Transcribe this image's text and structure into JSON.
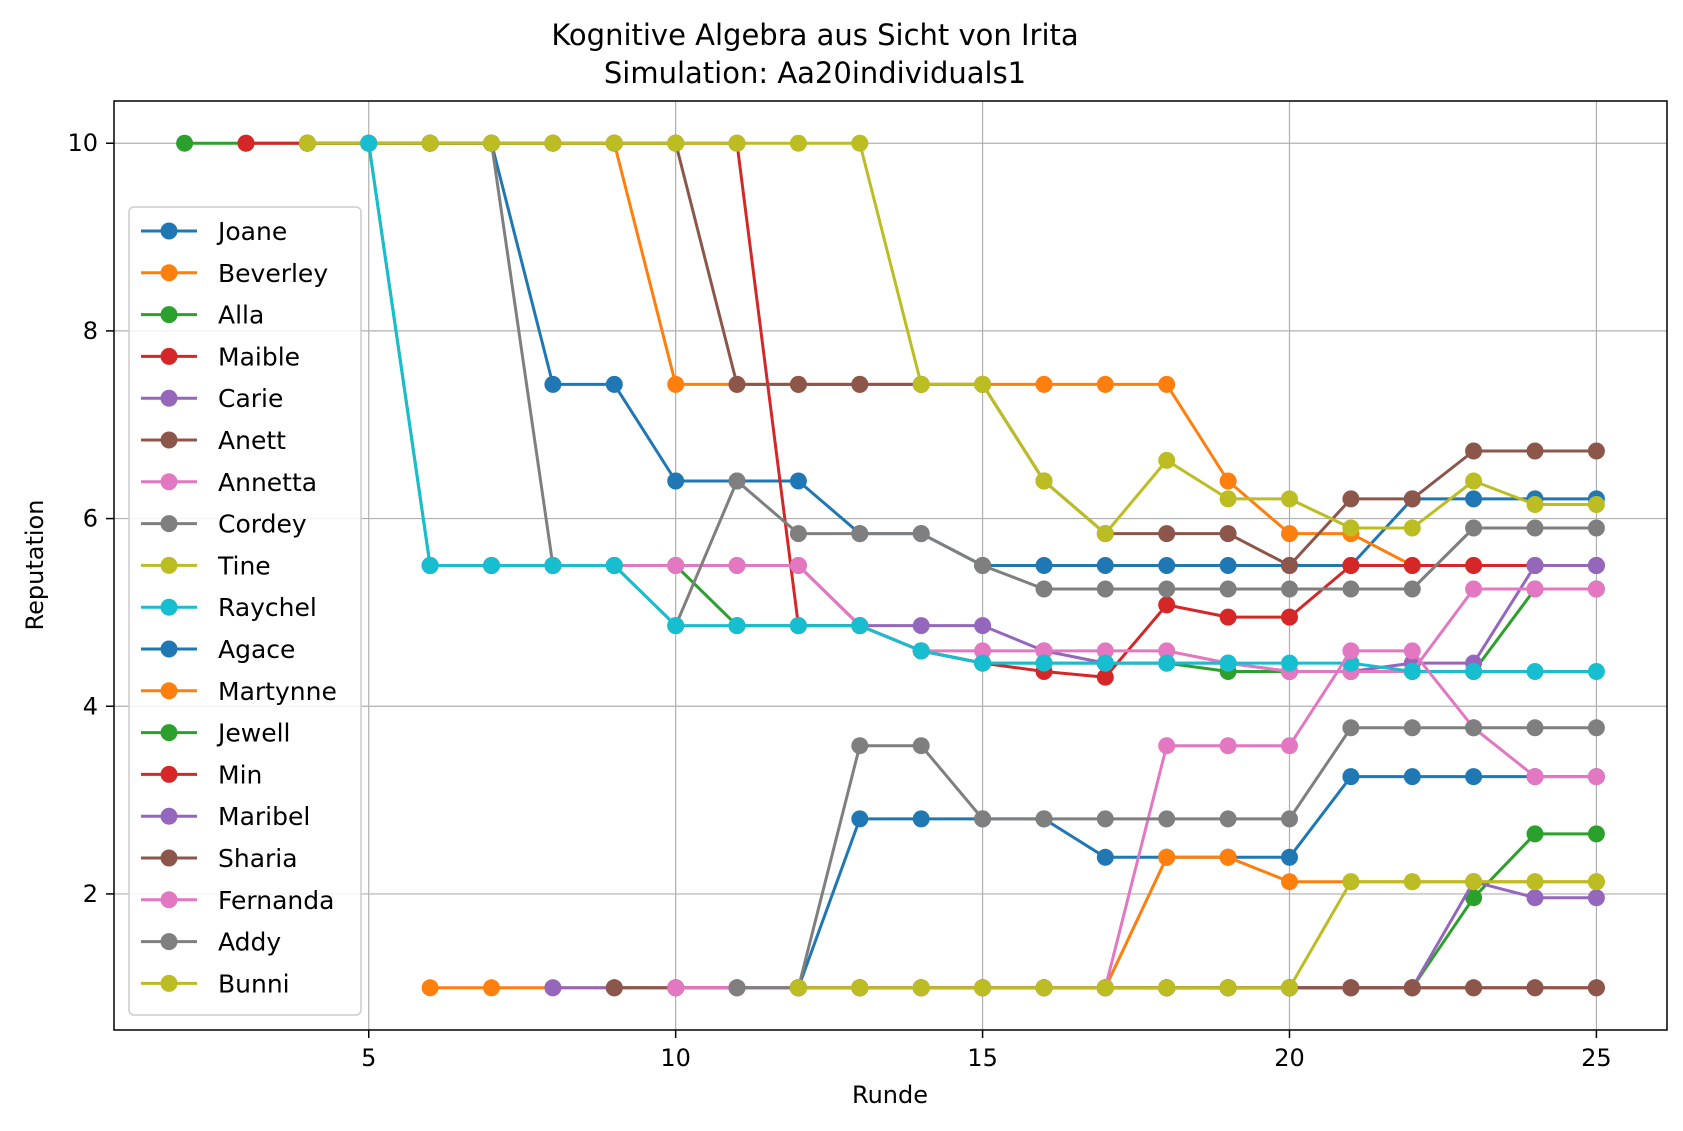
{
  "chart_data": {
    "type": "line",
    "title": "Kognitive Algebra aus Sicht von Irita",
    "subtitle": "Simulation: Aa20individuals1",
    "xlabel": "Runde",
    "ylabel": "Reputation",
    "xlim": [
      0.85,
      26.15
    ],
    "ylim": [
      0.55,
      10.45
    ],
    "xticks": [
      5,
      10,
      15,
      20,
      25
    ],
    "yticks": [
      2,
      4,
      6,
      8,
      10
    ],
    "grid": true,
    "legend_position": "left",
    "series": [
      {
        "name": "Joane",
        "color": "#1f77b4",
        "x": [
          5,
          6,
          7,
          8,
          9,
          10,
          11,
          12,
          13,
          14,
          15,
          16,
          17,
          18,
          19,
          20,
          21,
          22,
          23,
          24,
          25
        ],
        "y": [
          10,
          10,
          10,
          7.43,
          7.43,
          6.4,
          6.4,
          6.4,
          5.84,
          5.84,
          5.5,
          5.5,
          5.5,
          5.5,
          5.5,
          5.5,
          5.5,
          6.21,
          6.21,
          6.21,
          6.21
        ]
      },
      {
        "name": "Beverley",
        "color": "#ff7f0e",
        "x": [
          9,
          10,
          11,
          12,
          13,
          14,
          15,
          16,
          17,
          18,
          19,
          20,
          21,
          22,
          23,
          24,
          25
        ],
        "y": [
          10,
          7.43,
          7.43,
          7.43,
          7.43,
          7.43,
          7.43,
          7.43,
          7.43,
          7.43,
          6.4,
          5.84,
          5.84,
          5.5,
          5.5,
          5.5,
          5.5
        ]
      },
      {
        "name": "Alla",
        "color": "#2ca02c",
        "x": [
          2,
          3,
          4,
          5,
          6,
          7,
          8,
          9,
          10,
          11,
          12,
          13,
          14,
          15,
          16,
          17,
          18,
          19,
          20,
          21,
          22,
          23,
          24,
          25
        ],
        "y": [
          10,
          10,
          10,
          10,
          5.5,
          5.5,
          5.5,
          5.5,
          5.5,
          4.86,
          4.86,
          4.86,
          4.59,
          4.46,
          4.46,
          4.46,
          4.46,
          4.37,
          4.37,
          4.37,
          4.37,
          4.37,
          5.25,
          5.25
        ]
      },
      {
        "name": "Maible",
        "color": "#d62728",
        "x": [
          3,
          4,
          5,
          6,
          7,
          8,
          9,
          10,
          11,
          12,
          13,
          14,
          15,
          16,
          17,
          18,
          19,
          20,
          21,
          22,
          23,
          24,
          25
        ],
        "y": [
          10,
          10,
          10,
          10,
          10,
          10,
          10,
          10,
          10,
          4.86,
          4.86,
          4.59,
          4.46,
          4.37,
          4.31,
          5.08,
          4.95,
          4.95,
          5.5,
          5.5,
          5.5,
          5.5,
          5.5
        ]
      },
      {
        "name": "Carie",
        "color": "#9467bd",
        "x": [
          6,
          7,
          8,
          9,
          10,
          11,
          12,
          13,
          14,
          15,
          16,
          17,
          18,
          19,
          20,
          21,
          22,
          23,
          24,
          25
        ],
        "y": [
          5.5,
          5.5,
          5.5,
          5.5,
          5.5,
          5.5,
          5.5,
          4.86,
          4.86,
          4.86,
          4.59,
          4.46,
          4.46,
          4.46,
          4.37,
          4.37,
          4.46,
          4.46,
          5.5,
          5.5
        ]
      },
      {
        "name": "Anett",
        "color": "#8c564b",
        "x": [
          4,
          5,
          6,
          7,
          8,
          9,
          10,
          11,
          12,
          13,
          14,
          15,
          16,
          17,
          18,
          19,
          20,
          21,
          22,
          23,
          24,
          25
        ],
        "y": [
          10,
          10,
          10,
          10,
          10,
          10,
          10,
          7.43,
          7.43,
          7.43,
          7.43,
          7.43,
          6.4,
          5.84,
          5.84,
          5.84,
          5.5,
          6.21,
          6.21,
          6.72,
          6.72,
          6.72
        ]
      },
      {
        "name": "Annetta",
        "color": "#e377c2",
        "x": [
          6,
          7,
          8,
          9,
          10,
          11,
          12,
          13,
          14,
          15,
          16,
          17,
          18,
          19,
          20,
          21,
          22,
          23,
          24,
          25
        ],
        "y": [
          5.5,
          5.5,
          5.5,
          5.5,
          5.5,
          5.5,
          5.5,
          4.86,
          4.59,
          4.59,
          4.59,
          4.59,
          4.59,
          4.46,
          4.37,
          4.37,
          4.37,
          5.25,
          5.25,
          5.25
        ]
      },
      {
        "name": "Cordey",
        "color": "#7f7f7f",
        "x": [
          4,
          5,
          6,
          7,
          8,
          9,
          10,
          11,
          12,
          13,
          14,
          15,
          16,
          17,
          18,
          19,
          20,
          21,
          22,
          23,
          24,
          25
        ],
        "y": [
          10,
          10,
          10,
          10,
          5.5,
          5.5,
          4.86,
          6.4,
          5.84,
          5.84,
          5.84,
          5.5,
          5.25,
          5.25,
          5.25,
          5.25,
          5.25,
          5.25,
          5.25,
          5.9,
          5.9,
          5.9
        ]
      },
      {
        "name": "Tine",
        "color": "#bcbd22",
        "x": [
          4,
          5,
          6,
          7,
          8,
          9,
          10,
          11,
          12,
          13,
          14,
          15,
          16,
          17,
          18,
          19,
          20,
          21,
          22,
          23,
          24,
          25
        ],
        "y": [
          10,
          10,
          10,
          10,
          10,
          10,
          10,
          10,
          10,
          10,
          7.43,
          7.43,
          6.4,
          5.84,
          6.62,
          6.21,
          6.21,
          5.9,
          5.9,
          6.4,
          6.15,
          6.15
        ]
      },
      {
        "name": "Raychel",
        "color": "#17becf",
        "x": [
          5,
          6,
          7,
          8,
          9,
          10,
          11,
          12,
          13,
          14,
          15,
          16,
          17,
          18,
          19,
          20,
          21,
          22,
          23,
          24,
          25
        ],
        "y": [
          10,
          5.5,
          5.5,
          5.5,
          5.5,
          4.86,
          4.86,
          4.86,
          4.86,
          4.59,
          4.46,
          4.46,
          4.46,
          4.46,
          4.46,
          4.46,
          4.46,
          4.37,
          4.37,
          4.37,
          4.37
        ]
      },
      {
        "name": "Agace",
        "color": "#1f77b4",
        "x": [
          12,
          13,
          14,
          15,
          16,
          17,
          18,
          19,
          20,
          21,
          22,
          23,
          24,
          25
        ],
        "y": [
          1,
          2.8,
          2.8,
          2.8,
          2.8,
          2.39,
          2.39,
          2.39,
          2.39,
          3.25,
          3.25,
          3.25,
          3.25,
          3.25
        ]
      },
      {
        "name": "Martynne",
        "color": "#ff7f0e",
        "x": [
          6,
          7,
          8,
          9,
          10,
          11,
          12,
          13,
          14,
          15,
          16,
          17,
          18,
          19,
          20,
          21,
          22,
          23,
          24,
          25
        ],
        "y": [
          1,
          1,
          1,
          1,
          1,
          1,
          1,
          1,
          1,
          1,
          1,
          1,
          2.39,
          2.39,
          2.13,
          2.13,
          2.13,
          2.13,
          2.13,
          2.13
        ]
      },
      {
        "name": "Jewell",
        "color": "#2ca02c",
        "x": [
          12,
          13,
          14,
          15,
          16,
          17,
          18,
          19,
          20,
          21,
          22,
          23,
          24,
          25
        ],
        "y": [
          1,
          1,
          1,
          1,
          1,
          1,
          1,
          1,
          1,
          1,
          1,
          1.96,
          2.64,
          2.64
        ]
      },
      {
        "name": "Min",
        "color": "#d62728",
        "x": [
          12,
          13,
          14,
          15,
          16,
          17,
          18,
          19,
          20,
          21,
          22,
          23,
          24,
          25
        ],
        "y": [
          1,
          1,
          1,
          1,
          1,
          1,
          1,
          1,
          1,
          1,
          1,
          1,
          1,
          1
        ]
      },
      {
        "name": "Maribel",
        "color": "#9467bd",
        "x": [
          8,
          9,
          10,
          11,
          12,
          13,
          14,
          15,
          16,
          17,
          18,
          19,
          20,
          21,
          22,
          23,
          24,
          25
        ],
        "y": [
          1,
          1,
          1,
          1,
          1,
          1,
          1,
          1,
          1,
          1,
          1,
          1,
          1,
          1,
          1,
          2.13,
          1.96,
          1.96
        ]
      },
      {
        "name": "Sharia",
        "color": "#8c564b",
        "x": [
          9,
          10,
          11,
          12,
          13,
          14,
          15,
          16,
          17,
          18,
          19,
          20,
          21,
          22,
          23,
          24,
          25
        ],
        "y": [
          1,
          1,
          1,
          1,
          1,
          1,
          1,
          1,
          1,
          1,
          1,
          1,
          1,
          1,
          1,
          1,
          1
        ]
      },
      {
        "name": "Fernanda",
        "color": "#e377c2",
        "x": [
          10,
          11,
          12,
          13,
          14,
          15,
          16,
          17,
          18,
          19,
          20,
          21,
          22,
          23,
          24,
          25
        ],
        "y": [
          1,
          1,
          1,
          1,
          1,
          1,
          1,
          1,
          3.58,
          3.58,
          3.58,
          4.59,
          4.59,
          3.77,
          3.25,
          3.25
        ]
      },
      {
        "name": "Addy",
        "color": "#7f7f7f",
        "x": [
          11,
          12,
          13,
          14,
          15,
          16,
          17,
          18,
          19,
          20,
          21,
          22,
          23,
          24,
          25
        ],
        "y": [
          1,
          1,
          3.58,
          3.58,
          2.8,
          2.8,
          2.8,
          2.8,
          2.8,
          2.8,
          3.77,
          3.77,
          3.77,
          3.77,
          3.77
        ]
      },
      {
        "name": "Bunni",
        "color": "#bcbd22",
        "x": [
          12,
          13,
          14,
          15,
          16,
          17,
          18,
          19,
          20,
          21,
          22,
          23,
          24,
          25
        ],
        "y": [
          1,
          1,
          1,
          1,
          1,
          1,
          1,
          1,
          1,
          2.13,
          2.13,
          2.13,
          2.13,
          2.13
        ]
      }
    ]
  }
}
